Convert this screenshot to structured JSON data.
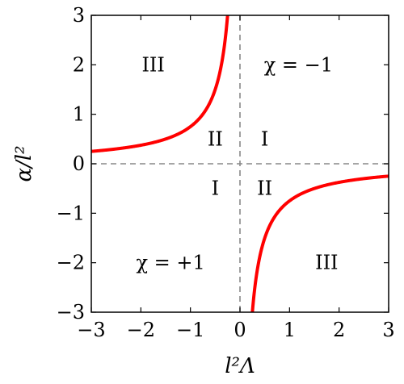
{
  "chart_data": {
    "type": "line",
    "title": "",
    "xlabel": "l²Λ",
    "ylabel": "α/l²",
    "xlim": [
      -3,
      3
    ],
    "ylim": [
      -3,
      3
    ],
    "grid": false,
    "x_ticks": [
      -3,
      -2,
      -1,
      0,
      1,
      2,
      3
    ],
    "y_ticks": [
      -3,
      -2,
      -1,
      0,
      1,
      2,
      3
    ],
    "x_tick_labels": [
      "−3",
      "−2",
      "−1",
      "0",
      "1",
      "2",
      "3"
    ],
    "y_tick_labels": [
      "−3",
      "−2",
      "−1",
      "0",
      "1",
      "2",
      "3"
    ],
    "series": [
      {
        "function": "y = -3/(4x)",
        "color": "#ff0000",
        "branches": [
          {
            "x_range": [
              -3,
              -0.25
            ]
          },
          {
            "x_range": [
              0.25,
              3
            ]
          }
        ]
      }
    ],
    "reference_lines": [
      {
        "axis": "x",
        "value": 0,
        "style": "dashed",
        "color": "#888888"
      },
      {
        "axis": "y",
        "value": 0,
        "style": "dashed",
        "color": "#888888"
      }
    ],
    "annotations": [
      {
        "text": "III",
        "x": -1.75,
        "y": 2
      },
      {
        "text": "χ = −1",
        "x": 1.18,
        "y": 2
      },
      {
        "text": "II",
        "x": -0.5,
        "y": 0.5
      },
      {
        "text": "I",
        "x": 0.5,
        "y": 0.5
      },
      {
        "text": "I",
        "x": -0.5,
        "y": -0.5
      },
      {
        "text": "II",
        "x": 0.5,
        "y": -0.5
      },
      {
        "text": "χ = +1",
        "x": -1.4,
        "y": -2
      },
      {
        "text": "III",
        "x": 1.75,
        "y": -2
      }
    ]
  }
}
